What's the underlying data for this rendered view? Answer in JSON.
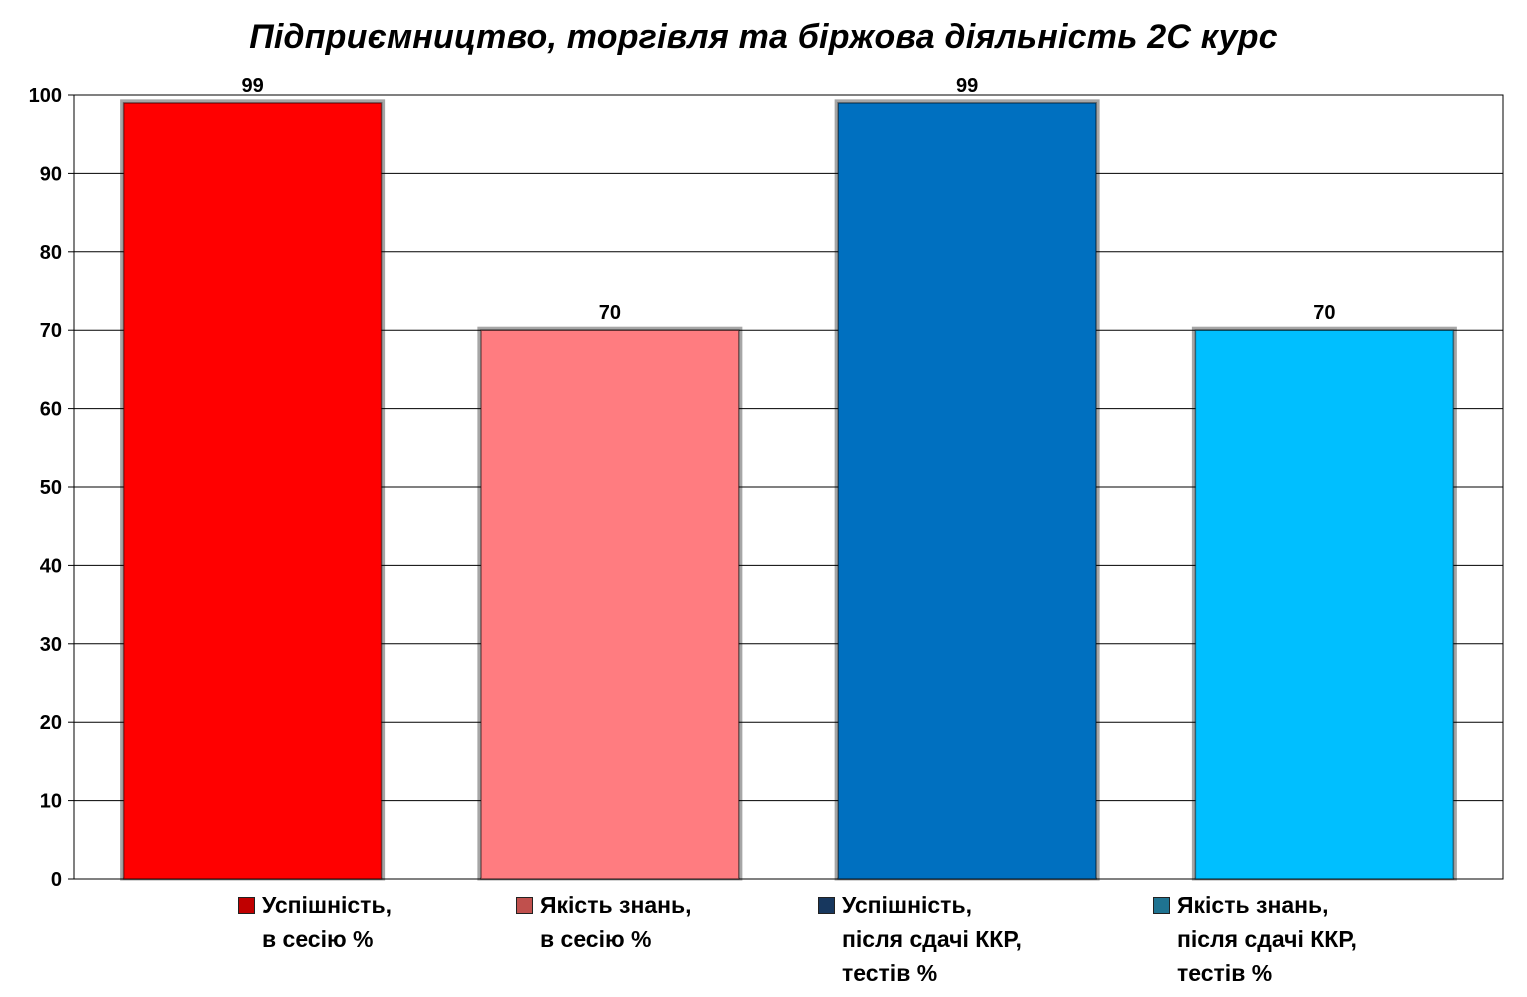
{
  "chart_data": {
    "type": "bar",
    "title": "Підприємництво, торгівля та біржова діяльність 2С курс",
    "xlabel": "",
    "ylabel": "",
    "ylim": [
      0,
      100
    ],
    "yticks": [
      0,
      10,
      20,
      30,
      40,
      50,
      60,
      70,
      80,
      90,
      100
    ],
    "grid": true,
    "legend_position": "bottom",
    "categories": [
      "Успішність, в сесію %",
      "Якість знань, в сесію %",
      "Успішність, після сдачі ККР, тестів %",
      "Якість знань, після сдачі ККР, тестів %"
    ],
    "series": [
      {
        "values": [
          99,
          70,
          99,
          70
        ],
        "colors": [
          "#ff0000",
          "#ff7c80",
          "#0070c0",
          "#00bfff"
        ]
      }
    ],
    "data_labels": [
      "99",
      "70",
      "99",
      "70"
    ]
  },
  "legend": [
    {
      "lines": [
        "Успішність,",
        "в сесію %"
      ],
      "color": "#c00000"
    },
    {
      "lines": [
        "Якість знань,",
        "в сесію %"
      ],
      "color": "#c0504d"
    },
    {
      "lines": [
        "Успішність,",
        "після сдачі ККР,",
        "тестів %"
      ],
      "color": "#17375e"
    },
    {
      "lines": [
        "Якість знань,",
        "після сдачі ККР,",
        "тестів %"
      ],
      "color": "#1f7391"
    }
  ]
}
